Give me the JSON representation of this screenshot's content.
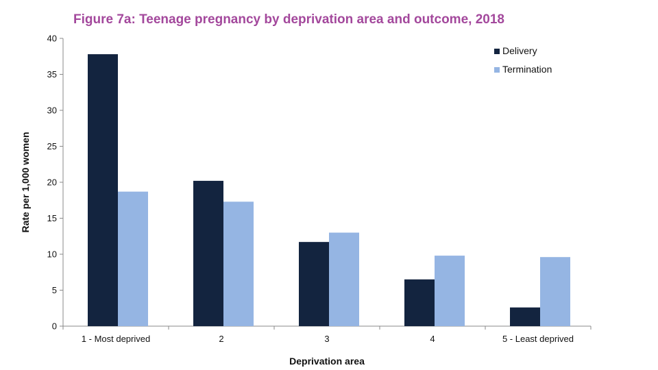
{
  "chart_data": {
    "type": "bar",
    "title": "Figure 7a: Teenage pregnancy by deprivation area and outcome, 2018",
    "xlabel": "Deprivation area",
    "ylabel": "Rate per 1,000 women",
    "ylim": [
      0,
      40
    ],
    "yticks": [
      "0",
      "5",
      "10",
      "15",
      "20",
      "25",
      "30",
      "35",
      "40"
    ],
    "categories": [
      "1 - Most deprived",
      "2",
      "3",
      "4",
      "5 - Least deprived"
    ],
    "series": [
      {
        "name": "Delivery",
        "color": "#13243f",
        "values": [
          37.8,
          20.2,
          11.7,
          6.5,
          2.6
        ]
      },
      {
        "name": "Termination",
        "color": "#95b5e3",
        "values": [
          18.7,
          17.3,
          13.0,
          9.8,
          9.6
        ]
      }
    ],
    "legend_position": "top-right",
    "grid": false
  }
}
